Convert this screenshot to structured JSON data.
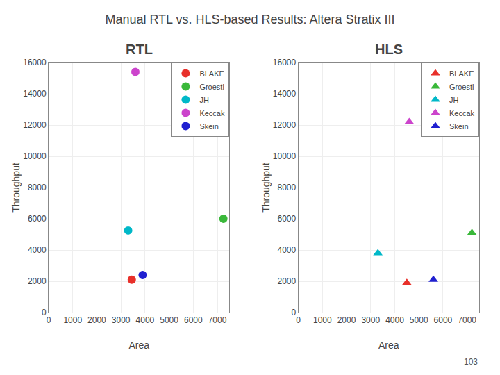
{
  "title": "Manual RTL vs. HLS-based Results: Altera Stratix III",
  "annotations": [
    "103"
  ],
  "chart_data": [
    {
      "type": "scatter",
      "title": "RTL",
      "xlabel": "Area",
      "ylabel": "Throughput",
      "xlim": [
        0,
        7500
      ],
      "ylim": [
        0,
        16000
      ],
      "xticks": [
        0,
        1000,
        2000,
        3000,
        4000,
        5000,
        6000,
        7000
      ],
      "yticks": [
        0,
        2000,
        4000,
        6000,
        8000,
        10000,
        12000,
        14000,
        16000
      ],
      "grid": true,
      "legend": "upper right",
      "marker": "circle",
      "series": [
        {
          "name": "BLAKE",
          "color": "#e8302a",
          "x": [
            3450
          ],
          "values": [
            2100
          ]
        },
        {
          "name": "Groestl",
          "color": "#3ab83a",
          "x": [
            7250
          ],
          "values": [
            6000
          ]
        },
        {
          "name": "JH",
          "color": "#00b8c8",
          "x": [
            3300
          ],
          "values": [
            5250
          ]
        },
        {
          "name": "Keccak",
          "color": "#cc44cc",
          "x": [
            3600
          ],
          "values": [
            15400
          ]
        },
        {
          "name": "Skein",
          "color": "#2020d0",
          "x": [
            3900
          ],
          "values": [
            2400
          ]
        }
      ]
    },
    {
      "type": "scatter",
      "title": "HLS",
      "xlabel": "Area",
      "ylabel": "Throughput",
      "xlim": [
        0,
        7500
      ],
      "ylim": [
        0,
        16000
      ],
      "xticks": [
        0,
        1000,
        2000,
        3000,
        4000,
        5000,
        6000,
        7000
      ],
      "yticks": [
        0,
        2000,
        4000,
        6000,
        8000,
        10000,
        12000,
        14000,
        16000
      ],
      "grid": true,
      "legend": "upper right",
      "marker": "triangle-up",
      "series": [
        {
          "name": "BLAKE",
          "color": "#e8302a",
          "x": [
            4500
          ],
          "values": [
            1900
          ]
        },
        {
          "name": "Groestl",
          "color": "#3ab83a",
          "x": [
            7200
          ],
          "values": [
            5100
          ]
        },
        {
          "name": "JH",
          "color": "#00b8c8",
          "x": [
            3300
          ],
          "values": [
            3800
          ]
        },
        {
          "name": "Keccak",
          "color": "#cc44cc",
          "x": [
            4600
          ],
          "values": [
            12200
          ]
        },
        {
          "name": "Skein",
          "color": "#2020d0",
          "x": [
            5600
          ],
          "values": [
            2100
          ]
        }
      ]
    }
  ]
}
